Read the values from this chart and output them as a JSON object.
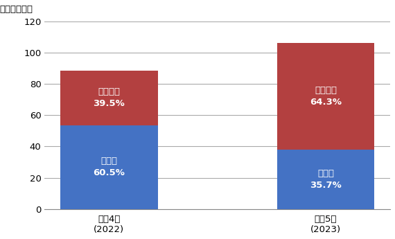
{
  "categories": [
    "令和4年\n(2022)",
    "令和5年\n(2023)"
  ],
  "yuubin_values": [
    53.5,
    37.8
  ],
  "ippan_values": [
    35.0,
    68.2
  ],
  "yuubin_pcts": [
    "60.5%",
    "35.7%"
  ],
  "ippan_pcts": [
    "39.5%",
    "64.3%"
  ],
  "yuubin_label": "郵便物",
  "ippan_label": "一般貨物",
  "yuubin_color": "#4472C4",
  "ippan_color": "#B34040",
  "ylabel": "点数（万点）",
  "ylim": [
    0,
    120
  ],
  "yticks": [
    0,
    20,
    40,
    60,
    80,
    100,
    120
  ],
  "bar_width": 0.45,
  "text_color": "#FFFFFF",
  "background_color": "#FFFFFF",
  "grid_color": "#AAAAAA"
}
